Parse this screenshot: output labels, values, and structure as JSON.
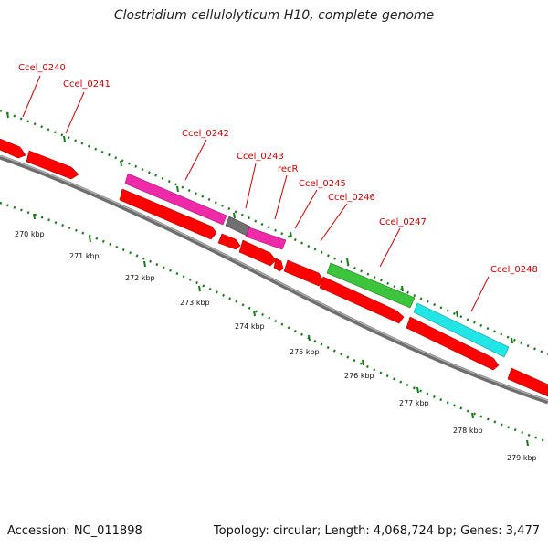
{
  "header": {
    "title": "Clostridium cellulolyticum H10, complete genome"
  },
  "footer": {
    "accession": "Accession: NC_011898",
    "summary": "Topology: circular; Length: 4,068,724 bp; Genes: 3,477"
  },
  "colors": {
    "backbone": "#808080",
    "cds_forward": "#ff0000",
    "cds_reverse": "#ff0000",
    "label": "#cc0000",
    "tick": "#1a7a1a",
    "ruler_label": "#111111",
    "gene_magenta": "#ee2aa8",
    "gene_gray": "#707070",
    "gene_green": "#3cc43c",
    "gene_cyan": "#22e6e6"
  },
  "ruler": {
    "labels": [
      "270 kbp",
      "271 kbp",
      "272 kbp",
      "273 kbp",
      "274 kbp",
      "275 kbp",
      "276 kbp",
      "277 kbp",
      "278 kbp",
      "279 kbp"
    ]
  },
  "feature_labels": [
    "Ccel_0240",
    "Ccel_0241",
    "Ccel_0242",
    "Ccel_0243",
    "recR",
    "Ccel_0245",
    "Ccel_0246",
    "Ccel_0247",
    "Ccel_0248"
  ]
}
